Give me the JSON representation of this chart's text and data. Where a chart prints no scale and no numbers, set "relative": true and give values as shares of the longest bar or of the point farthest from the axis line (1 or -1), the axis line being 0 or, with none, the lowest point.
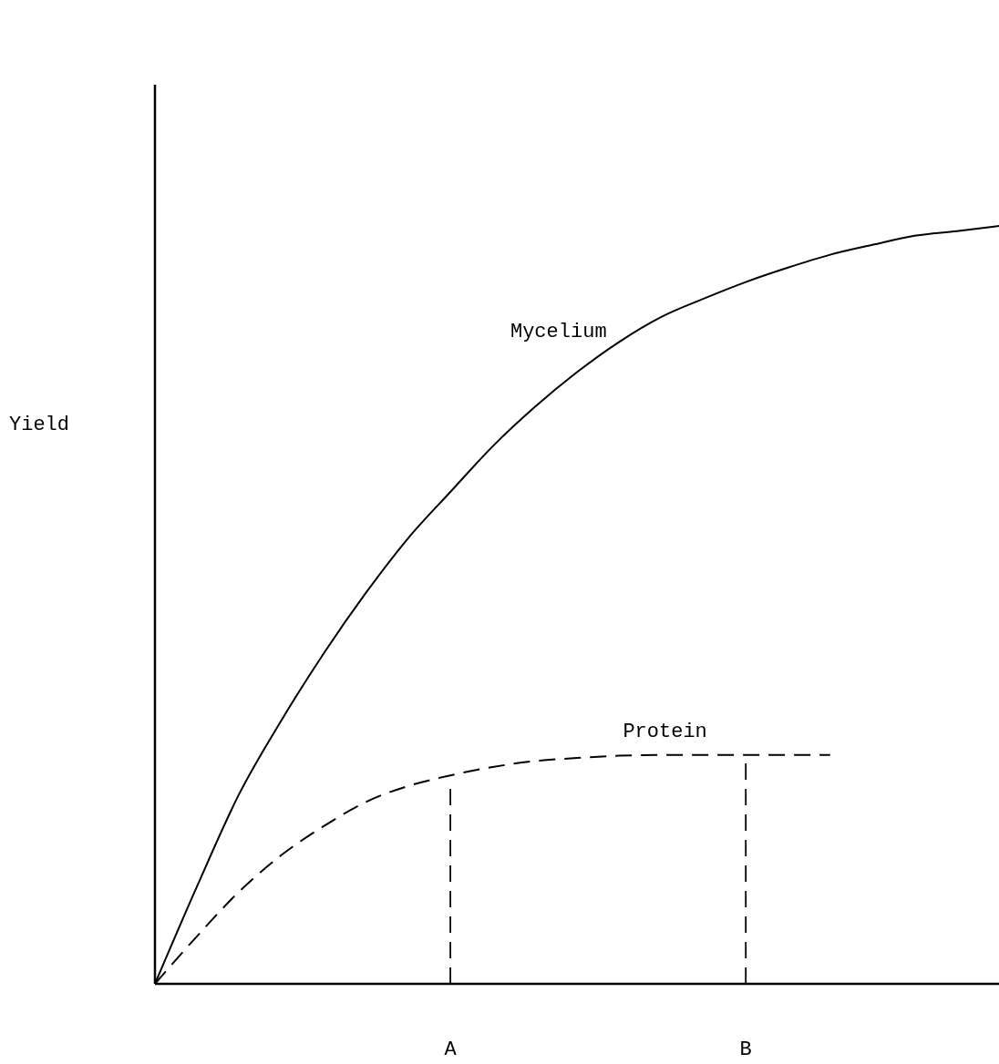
{
  "chart_data": {
    "type": "line",
    "relative": true,
    "ylabel": "Yield",
    "categories": [
      null,
      null,
      null,
      null,
      null,
      null,
      null,
      "A",
      null,
      null,
      null,
      null,
      null,
      null,
      "B",
      null,
      null,
      null,
      null,
      null,
      null
    ],
    "marker": "none",
    "series": [
      {
        "name": "Mycelium",
        "color": "#000000",
        "line_style": "solid",
        "values": [
          0,
          0.129,
          0.251,
          0.348,
          0.436,
          0.516,
          0.588,
          0.649,
          0.709,
          0.761,
          0.807,
          0.847,
          0.88,
          0.904,
          0.926,
          0.945,
          0.962,
          0.975,
          0.987,
          0.993,
          1
        ]
      },
      {
        "name": "Protein",
        "color": "#000000",
        "line_style": "dashed",
        "values": [
          0,
          0.063,
          0.122,
          0.17,
          0.208,
          0.24,
          0.261,
          0.275,
          0.286,
          0.294,
          0.298,
          0.301,
          0.302,
          0.302,
          0.302,
          0.302,
          0.302,
          null,
          null,
          null,
          null
        ]
      }
    ],
    "ref_lines": [
      {
        "axis": "x",
        "value": "A",
        "line_style": "dashed",
        "color": "#000000"
      },
      {
        "axis": "x",
        "value": "B",
        "line_style": "dashed",
        "color": "#000000"
      }
    ]
  }
}
